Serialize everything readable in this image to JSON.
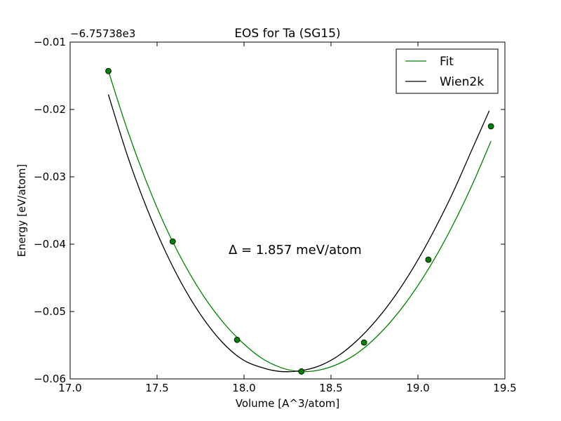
{
  "chart_data": {
    "type": "line",
    "title": "EOS for Ta (SG15)",
    "xlabel": "Volume [A^3/atom]",
    "ylabel": "Energy [eV/atom]",
    "offset_label": "−6.75738e3",
    "annotation": "Δ = 1.857 meV/atom",
    "xlim": [
      17.0,
      19.5
    ],
    "ylim": [
      -0.06,
      -0.01
    ],
    "x_ticks": [
      17.0,
      17.5,
      18.0,
      18.5,
      19.0,
      19.5
    ],
    "x_tick_labels": [
      "17.0",
      "17.5",
      "18.0",
      "18.5",
      "19.0",
      "19.5"
    ],
    "y_ticks": [
      -0.06,
      -0.05,
      -0.04,
      -0.03,
      -0.02,
      -0.01
    ],
    "y_tick_labels": [
      "−0.06",
      "−0.05",
      "−0.04",
      "−0.03",
      "−0.02",
      "−0.01"
    ],
    "grid": false,
    "legend_position": "top-right",
    "legend": [
      "Fit",
      "Wien2k"
    ],
    "points": {
      "x": [
        17.22,
        17.59,
        17.96,
        18.33,
        18.69,
        19.06,
        19.42
      ],
      "y": [
        -0.0143,
        -0.0396,
        -0.0542,
        -0.0589,
        -0.0546,
        -0.0423,
        -0.0225
      ],
      "color": "#007f00"
    },
    "series": [
      {
        "name": "Fit",
        "color": "#008000",
        "x": [
          17.22,
          17.33,
          17.44,
          17.55,
          17.66,
          17.77,
          17.88,
          17.99,
          18.1,
          18.21,
          18.32,
          18.43,
          18.54,
          18.65,
          18.76,
          18.87,
          18.98,
          19.09,
          19.2,
          19.31,
          19.42
        ],
        "y": [
          -0.0143,
          -0.0231,
          -0.0308,
          -0.0375,
          -0.0431,
          -0.0478,
          -0.0516,
          -0.0546,
          -0.0569,
          -0.0583,
          -0.0589,
          -0.0587,
          -0.0578,
          -0.0562,
          -0.0538,
          -0.0507,
          -0.0469,
          -0.0424,
          -0.0372,
          -0.0313,
          -0.0247
        ]
      },
      {
        "name": "Wien2k",
        "color": "#000000",
        "x": [
          17.22,
          17.33,
          17.44,
          17.55,
          17.66,
          17.77,
          17.88,
          17.99,
          18.1,
          18.21,
          18.32,
          18.43,
          18.54,
          18.65,
          18.76,
          18.87,
          18.98,
          19.09,
          19.2,
          19.31,
          19.41
        ],
        "y": [
          -0.0178,
          -0.0269,
          -0.0346,
          -0.0412,
          -0.0467,
          -0.0512,
          -0.0547,
          -0.0571,
          -0.0583,
          -0.0589,
          -0.0588,
          -0.0581,
          -0.0566,
          -0.0543,
          -0.0513,
          -0.0476,
          -0.0432,
          -0.0381,
          -0.0324,
          -0.026,
          -0.0202
        ]
      }
    ]
  }
}
